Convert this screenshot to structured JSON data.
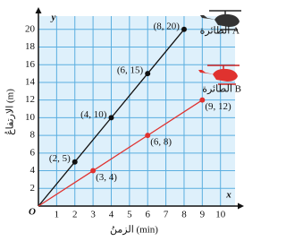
{
  "chart_data": {
    "type": "line",
    "x_label": "الزمنُ (min)",
    "y_label": "الارتفاعُ (m)",
    "x_axis_letter": "x",
    "y_axis_letter": "y",
    "origin_label": "O",
    "xlim": [
      0,
      10.8
    ],
    "ylim": [
      0,
      21.5
    ],
    "xticks": [
      1,
      2,
      3,
      4,
      5,
      6,
      7,
      8,
      9,
      10
    ],
    "yticks": [
      2,
      4,
      6,
      8,
      10,
      12,
      14,
      16,
      18,
      20
    ],
    "grid": true,
    "series": [
      {
        "name": "الطائرة A",
        "color": "#111111",
        "x": [
          0,
          2,
          4,
          6,
          8
        ],
        "values": [
          0,
          5,
          10,
          15,
          20
        ],
        "value_labels": [
          null,
          "(2, 5)",
          "(4, 10)",
          "(6, 15)",
          "(8, 20)"
        ]
      },
      {
        "name": "الطائرة B",
        "color": "#e0322f",
        "x": [
          0,
          3,
          6,
          9
        ],
        "values": [
          0,
          4,
          8,
          12
        ],
        "value_labels": [
          null,
          "(3, 4)",
          "(6, 8)",
          "(9, 12)"
        ]
      }
    ]
  }
}
